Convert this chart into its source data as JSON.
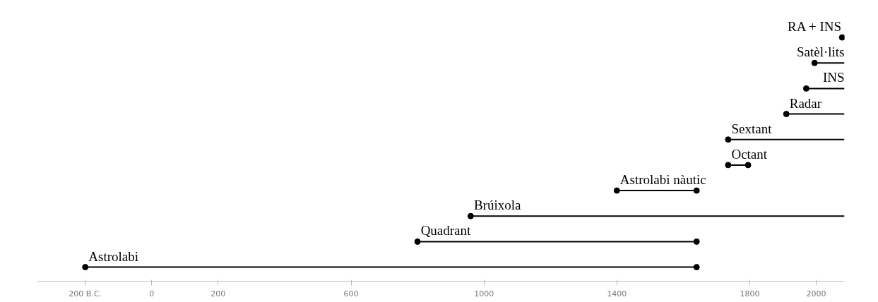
{
  "chart_data": {
    "type": "bar",
    "orientation": "horizontal",
    "grid": false,
    "categories": [
      "RA + INS",
      "Satèl·lits",
      "INS",
      "Radar",
      "Sextant",
      "Octant",
      "Astrolabi nàutic",
      "Brúixola",
      "Quadrant",
      "Astrolabi"
    ],
    "series": [
      {
        "color": "#000000",
        "base": [
          null,
          1995,
          1970,
          1910,
          1735,
          1735,
          1400,
          960,
          800,
          -200
        ],
        "values": [
          null,
          90,
          115,
          175,
          350,
          60,
          240,
          1125,
          840,
          1840
        ]
      },
      {
        "type": "scatter",
        "marker": "circle",
        "color": "#000000",
        "x": [
          "RA + INS",
          "Satèl·lits",
          "INS",
          "Radar",
          "Sextant",
          "Octant",
          "Octant",
          "Astrolabi nàutic",
          "Astrolabi nàutic",
          "Brúixola",
          "Quadrant",
          "Quadrant",
          "Astrolabi",
          "Astrolabi"
        ],
        "values": [
          2078,
          1995,
          1970,
          1910,
          1735,
          1735,
          1795,
          1400,
          1640,
          960,
          800,
          1640,
          -200,
          1640
        ]
      }
    ],
    "xlim": [
      -345,
      2085
    ],
    "xticks": [
      {
        "value": -200,
        "label": "200 B.C."
      },
      0,
      200,
      600,
      1000,
      1400,
      1800,
      2000
    ]
  }
}
